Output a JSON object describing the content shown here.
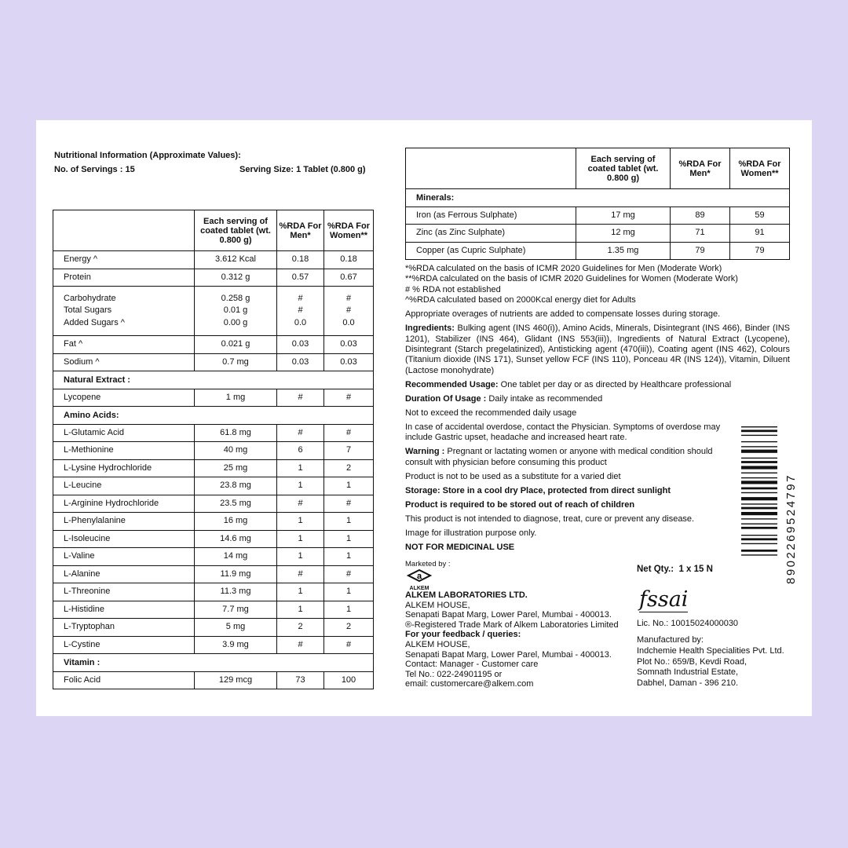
{
  "header": {
    "title": "Nutritional Information (Approximate Values):",
    "servings": "No. of Servings : 15",
    "serving_size": "Serving Size: 1 Tablet (0.800 g)"
  },
  "table_headers": [
    "",
    "Each serving of coated tablet (wt. 0.800 g)",
    "%RDA For Men*",
    "%RDA For Women**"
  ],
  "left_rows": [
    {
      "name": [
        "Energy ^"
      ],
      "amount": [
        "3.612 Kcal"
      ],
      "men": [
        "0.18"
      ],
      "women": [
        "0.18"
      ]
    },
    {
      "name": [
        "Protein"
      ],
      "amount": [
        "0.312 g"
      ],
      "men": [
        "0.57"
      ],
      "women": [
        "0.67"
      ]
    },
    {
      "name": [
        "Carbohydrate",
        "Total Sugars",
        "Added Sugars ^"
      ],
      "amount": [
        "0.258 g",
        "0.01 g",
        "0.00 g"
      ],
      "men": [
        "#",
        "#",
        "0.0"
      ],
      "women": [
        "#",
        "#",
        "0.0"
      ]
    },
    {
      "name": [
        "Fat ^"
      ],
      "amount": [
        "0.021 g"
      ],
      "men": [
        "0.03"
      ],
      "women": [
        "0.03"
      ]
    },
    {
      "name": [
        "Sodium ^"
      ],
      "amount": [
        "0.7 mg"
      ],
      "men": [
        "0.03"
      ],
      "women": [
        "0.03"
      ]
    },
    {
      "section": "Natural Extract :"
    },
    {
      "name": [
        "Lycopene"
      ],
      "amount": [
        "1 mg"
      ],
      "men": [
        "#"
      ],
      "women": [
        "#"
      ]
    },
    {
      "section": "Amino Acids:"
    },
    {
      "name": [
        "L-Glutamic Acid"
      ],
      "amount": [
        "61.8 mg"
      ],
      "men": [
        "#"
      ],
      "women": [
        "#"
      ]
    },
    {
      "name": [
        "L-Methionine"
      ],
      "amount": [
        "40 mg"
      ],
      "men": [
        "6"
      ],
      "women": [
        "7"
      ]
    },
    {
      "name": [
        "L-Lysine Hydrochloride"
      ],
      "amount": [
        "25 mg"
      ],
      "men": [
        "1"
      ],
      "women": [
        "2"
      ]
    },
    {
      "name": [
        "L-Leucine"
      ],
      "amount": [
        "23.8 mg"
      ],
      "men": [
        "1"
      ],
      "women": [
        "1"
      ]
    },
    {
      "name": [
        "L-Arginine Hydrochloride"
      ],
      "amount": [
        "23.5 mg"
      ],
      "men": [
        "#"
      ],
      "women": [
        "#"
      ]
    },
    {
      "name": [
        "L-Phenylalanine"
      ],
      "amount": [
        "16 mg"
      ],
      "men": [
        "1"
      ],
      "women": [
        "1"
      ]
    },
    {
      "name": [
        "L-Isoleucine"
      ],
      "amount": [
        "14.6 mg"
      ],
      "men": [
        "1"
      ],
      "women": [
        "1"
      ]
    },
    {
      "name": [
        "L-Valine"
      ],
      "amount": [
        "14 mg"
      ],
      "men": [
        "1"
      ],
      "women": [
        "1"
      ]
    },
    {
      "name": [
        "L-Alanine"
      ],
      "amount": [
        "11.9 mg"
      ],
      "men": [
        "#"
      ],
      "women": [
        "#"
      ]
    },
    {
      "name": [
        "L-Threonine"
      ],
      "amount": [
        "11.3  mg"
      ],
      "men": [
        "1"
      ],
      "women": [
        "1"
      ]
    },
    {
      "name": [
        "L-Histidine"
      ],
      "amount": [
        "7.7 mg"
      ],
      "men": [
        "1"
      ],
      "women": [
        "1"
      ]
    },
    {
      "name": [
        "L-Tryptophan"
      ],
      "amount": [
        "5 mg"
      ],
      "men": [
        "2"
      ],
      "women": [
        "2"
      ]
    },
    {
      "name": [
        "L-Cystine"
      ],
      "amount": [
        "3.9 mg"
      ],
      "men": [
        "#"
      ],
      "women": [
        "#"
      ]
    },
    {
      "section": "Vitamin :"
    },
    {
      "name": [
        "Folic Acid"
      ],
      "amount": [
        "129 mcg"
      ],
      "men": [
        "73"
      ],
      "women": [
        "100"
      ]
    }
  ],
  "right_rows": [
    {
      "section": "Minerals:"
    },
    {
      "name": [
        "Iron (as Ferrous Sulphate)"
      ],
      "amount": [
        "17 mg"
      ],
      "men": [
        "89"
      ],
      "women": [
        "59"
      ]
    },
    {
      "name": [
        "Zinc (as Zinc Sulphate)"
      ],
      "amount": [
        "12 mg"
      ],
      "men": [
        "71"
      ],
      "women": [
        "91"
      ]
    },
    {
      "name": [
        "Copper (as Cupric Sulphate)"
      ],
      "amount": [
        "1.35 mg"
      ],
      "men": [
        "79"
      ],
      "women": [
        "79"
      ]
    }
  ],
  "notes": {
    "footnotes": [
      "*%RDA calculated on the basis of ICMR 2020 Guidelines for Men (Moderate Work)",
      "**%RDA calculated on the basis of ICMR 2020 Guidelines for Women (Moderate Work)",
      "# % RDA not established",
      "^%RDA calculated based on 2000Kcal energy diet for Adults"
    ],
    "overages": "Appropriate overages of nutrients are added to compensate losses during storage.",
    "ingredients_label": "Ingredients:",
    "ingredients": " Bulking agent (INS 460(i)), Amino Acids, Minerals, Disintegrant (INS 466), Binder (INS 1201), Stabilizer (INS 464), Glidant (INS 553(iii)), Ingredients of Natural Extract (Lycopene), Disintegrant (Starch pregelatinized), Antisticking agent (470(iii)), Coating agent (INS 462), Colours (Titanium dioxide (INS 171), Sunset yellow FCF (INS 110), Ponceau 4R (INS 124)), Vitamin, Diluent (Lactose monohydrate)",
    "usage_label": "Recommended Usage:",
    "usage": " One tablet per day or as directed by Healthcare professional",
    "duration_label": "Duration Of Usage :",
    "duration": " Daily intake as recommended",
    "not_exceed": "Not to exceed the recommended daily usage",
    "overdose": "In case of accidental overdose, contact the Physician. Symptoms of overdose may include Gastric upset, headache and increased heart rate.",
    "warning_label": "Warning :",
    "warning": " Pregnant or lactating women or anyone with medical condition should consult with physician before consuming this product",
    "substitute": "Product is not to be used as a substitute for a varied diet",
    "storage": "Storage: Store in a cool dry Place, protected from direct sunlight",
    "children": "Product is required to be stored out of reach of children",
    "disclaimer": "This product is not intended to diagnose, treat, cure or prevent any disease.",
    "illustration": "Image for illustration purpose only.",
    "not_medicinal": "NOT FOR MEDICINAL USE"
  },
  "marketer": {
    "label": "Marketed by :",
    "logo_text": "ALKEM",
    "company": "ALKEM LABORATORIES LTD.",
    "lines": [
      "ALKEM HOUSE,",
      "Senapati Bapat Marg, Lower Parel, Mumbai - 400013.",
      "®-Registered Trade Mark of Alkem Laboratories Limited"
    ],
    "feedback": "For your feedback / queries:",
    "feedback_lines": [
      "ALKEM HOUSE,",
      "Senapati Bapat Marg, Lower Parel, Mumbai - 400013.",
      "Contact: Manager - Customer care",
      "Tel No.: 022-24901195 or",
      "email: customercare@alkem.com"
    ]
  },
  "net_qty": "Net Qty.:  1 x 15 N",
  "fssai": {
    "logo_text": "fssai",
    "license": "Lic. No.: 10015024000030"
  },
  "manufacturer": {
    "label": "Manufactured by:",
    "lines": [
      "Indchemie Health Specialities Pvt. Ltd.",
      "Plot No.: 659/B, Kevdi Road,",
      "Somnath Industrial Estate,",
      "Dabhel, Daman - 396 210."
    ]
  },
  "barcode": "8902269524797"
}
